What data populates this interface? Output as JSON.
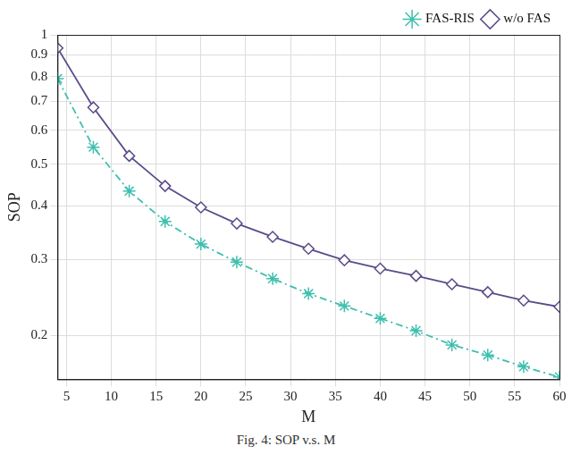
{
  "chart_data": {
    "type": "line",
    "caption": "Fig. 4: SOP v.s. M",
    "x_label": "M",
    "y_label": "SOP",
    "x": [
      4,
      8,
      12,
      16,
      20,
      24,
      28,
      32,
      36,
      40,
      44,
      48,
      52,
      56,
      60
    ],
    "series": [
      {
        "name": "FAS-RIS",
        "color": "#3dbfae",
        "marker": "star",
        "line_style": "dashdot",
        "values": [
          0.791,
          0.548,
          0.433,
          0.368,
          0.326,
          0.296,
          0.271,
          0.25,
          0.234,
          0.219,
          0.205,
          0.19,
          0.18,
          0.169,
          0.16
        ]
      },
      {
        "name": "w/o FAS",
        "color": "#5b4a8a",
        "marker": "diamond",
        "line_style": "solid",
        "values": [
          0.932,
          0.678,
          0.523,
          0.445,
          0.397,
          0.364,
          0.339,
          0.318,
          0.299,
          0.286,
          0.275,
          0.263,
          0.252,
          0.241,
          0.233
        ]
      }
    ],
    "xlim": [
      4,
      60
    ],
    "xticks": [
      5,
      10,
      15,
      20,
      25,
      30,
      35,
      40,
      45,
      50,
      55,
      60
    ],
    "ylim": [
      0.158,
      1
    ],
    "yticks": [
      0.2,
      0.3,
      0.4,
      0.5,
      0.6,
      0.7,
      0.8,
      0.9,
      1
    ],
    "log": "y",
    "grid": true,
    "legend": "top right"
  }
}
